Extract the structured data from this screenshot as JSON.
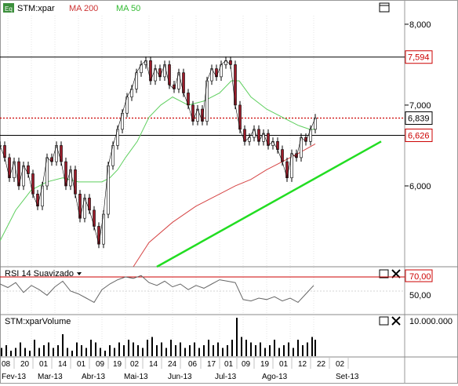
{
  "colors": {
    "price": "#000000",
    "ma200": "#d64545",
    "ma50": "#5ecf5e",
    "trendline": "#22dd22",
    "hline": "#000000",
    "current_line": "#cc0000",
    "label_red": "#cc0000",
    "grid": "#c8c8c8",
    "rsi": "#666666",
    "volume": "#000000"
  },
  "header": {
    "icon": "Eq",
    "symbol": "STM:xpar",
    "ma200_label": "MA 200",
    "ma50_label": "MA 50"
  },
  "rsi_panel": {
    "title": "RSI 14 Suavizado",
    "level_70": "70,00",
    "level_50": "50,00"
  },
  "volume_panel": {
    "title": "STM:xparVolume",
    "level": "10.000.000"
  },
  "price_axis": {
    "ticks": [
      "8,000",
      "7,000",
      "6,000"
    ]
  },
  "price_labels": {
    "resistance": "7,594",
    "current": "6,839",
    "support": "6,626"
  },
  "x_axis": {
    "days": [
      "08",
      "20",
      "01",
      "14",
      "01",
      "09",
      "19",
      "02",
      "14",
      "24",
      "06",
      "17",
      "01",
      "09",
      "19",
      "01",
      "12",
      "22",
      "02"
    ],
    "months": [
      "Fev-13",
      "Mar-13",
      "Abr-13",
      "Mai-13",
      "Jun-13",
      "Jul-13",
      "Ago-13",
      "Set-13"
    ]
  },
  "chart_data": {
    "type": "line",
    "title": "STM:xpar",
    "price_ylim": [
      5.0,
      8.3
    ],
    "price_ticks": [
      8.0,
      7.0,
      6.0
    ],
    "hlines": [
      7.594,
      6.839,
      6.626
    ],
    "series": [
      {
        "name": "STM:xpar",
        "x": [
          0,
          6,
          12,
          18,
          24,
          30,
          36,
          42,
          48,
          54,
          60,
          66,
          72,
          78,
          84,
          90,
          96,
          102,
          108,
          114,
          120,
          126,
          132,
          138,
          144,
          150,
          156,
          162,
          168,
          174,
          180,
          186,
          192,
          198,
          204,
          210,
          216,
          222,
          228,
          234,
          240,
          246,
          252,
          258,
          264,
          270,
          276,
          282,
          288,
          294,
          300,
          306,
          312,
          318,
          324,
          330,
          336,
          342,
          348,
          354,
          360,
          366,
          372,
          378,
          384,
          390,
          396,
          402
        ],
        "values": [
          6.5,
          6.35,
          6.1,
          6.3,
          6.0,
          6.25,
          6.15,
          5.9,
          5.75,
          6.0,
          6.35,
          6.3,
          6.5,
          6.3,
          6.0,
          6.2,
          5.9,
          5.6,
          5.85,
          5.7,
          5.5,
          5.28,
          5.65,
          6.25,
          6.5,
          6.7,
          6.9,
          7.1,
          7.2,
          7.4,
          7.5,
          7.55,
          7.3,
          7.45,
          7.35,
          7.5,
          7.25,
          7.2,
          7.4,
          7.15,
          7.0,
          6.8,
          6.95,
          6.8,
          7.3,
          7.45,
          7.35,
          7.5,
          7.55,
          7.5,
          7.0,
          6.7,
          6.55,
          6.6,
          6.7,
          6.55,
          6.65,
          6.5,
          6.55,
          6.45,
          6.3,
          6.1,
          6.4,
          6.35,
          6.6,
          6.55,
          6.7,
          6.84
        ]
      },
      {
        "name": "MA 200",
        "x": [
          170,
          190,
          220,
          250,
          280,
          300,
          320,
          340,
          360,
          380,
          402
        ],
        "values": [
          5.0,
          5.3,
          5.55,
          5.75,
          5.9,
          6.0,
          6.08,
          6.2,
          6.3,
          6.4,
          6.52
        ]
      },
      {
        "name": "MA 50",
        "x": [
          0,
          20,
          40,
          60,
          80,
          100,
          120,
          130,
          140,
          150,
          160,
          175,
          190,
          205,
          220,
          240,
          260,
          280,
          295,
          305,
          320,
          340,
          360,
          380,
          395,
          402
        ],
        "values": [
          5.32,
          5.7,
          5.95,
          6.05,
          6.1,
          6.05,
          6.05,
          6.05,
          6.1,
          6.2,
          6.35,
          6.55,
          6.85,
          7.0,
          7.1,
          7.0,
          7.05,
          7.15,
          7.3,
          7.3,
          7.1,
          6.95,
          6.85,
          6.75,
          6.7,
          6.7
        ]
      }
    ],
    "trendline": {
      "x": [
        200,
        486
      ],
      "values": [
        5.0,
        6.55
      ]
    },
    "rsi": {
      "name": "RSI 14 Suavizado",
      "levels": [
        70,
        50
      ],
      "x": [
        0,
        10,
        20,
        30,
        40,
        50,
        60,
        70,
        80,
        90,
        100,
        110,
        120,
        130,
        140,
        150,
        160,
        170,
        180,
        190,
        200,
        210,
        220,
        230,
        240,
        250,
        260,
        270,
        280,
        290,
        300,
        310,
        320,
        330,
        340,
        350,
        360,
        370,
        380,
        390,
        400
      ],
      "values": [
        60,
        55,
        62,
        48,
        58,
        52,
        44,
        56,
        64,
        50,
        46,
        40,
        34,
        52,
        60,
        66,
        70,
        68,
        72,
        62,
        58,
        64,
        56,
        60,
        52,
        58,
        54,
        60,
        66,
        64,
        62,
        38,
        36,
        40,
        38,
        42,
        36,
        40,
        34,
        46,
        58
      ]
    },
    "volume": {
      "name": "STM:xparVolume",
      "level_label": 10000000,
      "x": [
        2,
        8,
        14,
        20,
        26,
        32,
        38,
        44,
        50,
        56,
        62,
        68,
        74,
        80,
        86,
        92,
        98,
        104,
        110,
        116,
        122,
        128,
        134,
        140,
        146,
        152,
        158,
        164,
        170,
        176,
        182,
        188,
        194,
        200,
        206,
        212,
        218,
        224,
        230,
        236,
        242,
        248,
        254,
        260,
        266,
        272,
        278,
        284,
        290,
        296,
        302,
        308,
        314,
        320,
        326,
        332,
        338,
        344,
        350,
        356,
        362,
        368,
        374,
        380,
        386,
        392,
        398,
        402
      ],
      "values": [
        3,
        4,
        2,
        3,
        5,
        3,
        2,
        6,
        3,
        4,
        5,
        3,
        4,
        8,
        3,
        2,
        5,
        4,
        3,
        6,
        5,
        3,
        2,
        4,
        3,
        5,
        4,
        6,
        5,
        4,
        3,
        6,
        7,
        4,
        5,
        3,
        6,
        4,
        5,
        3,
        4,
        5,
        3,
        4,
        6,
        4,
        5,
        3,
        4,
        6,
        14,
        7,
        6,
        5,
        4,
        5,
        3,
        4,
        6,
        3,
        4,
        5,
        3,
        6,
        4,
        5,
        7,
        6
      ]
    }
  }
}
